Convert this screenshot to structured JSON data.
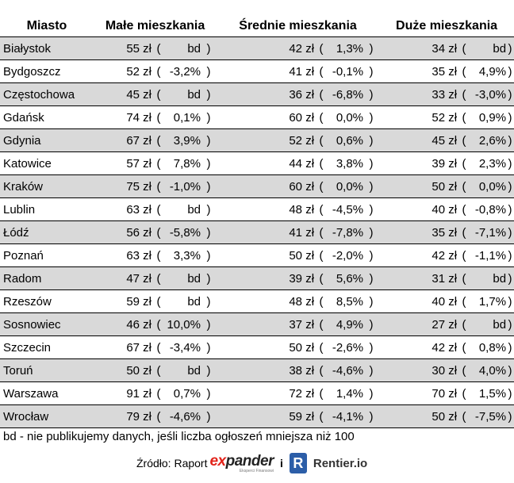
{
  "headers": [
    "Miasto",
    "Małe mieszkania",
    "Średnie mieszkania",
    "Duże mieszkania"
  ],
  "rows": [
    {
      "city": "Białystok",
      "small": {
        "price": "55 zł",
        "change": "bd"
      },
      "medium": {
        "price": "42 zł",
        "change": "1,3%"
      },
      "large": {
        "price": "34 zł",
        "change": "bd"
      }
    },
    {
      "city": "Bydgoszcz",
      "small": {
        "price": "52 zł",
        "change": "-3,2%"
      },
      "medium": {
        "price": "41 zł",
        "change": "-0,1%"
      },
      "large": {
        "price": "35 zł",
        "change": "4,9%"
      }
    },
    {
      "city": "Częstochowa",
      "small": {
        "price": "45 zł",
        "change": "bd"
      },
      "medium": {
        "price": "36 zł",
        "change": "-6,8%"
      },
      "large": {
        "price": "33 zł",
        "change": "-3,0%"
      }
    },
    {
      "city": "Gdańsk",
      "small": {
        "price": "74 zł",
        "change": "0,1%"
      },
      "medium": {
        "price": "60 zł",
        "change": "0,0%"
      },
      "large": {
        "price": "52 zł",
        "change": "0,9%"
      }
    },
    {
      "city": "Gdynia",
      "small": {
        "price": "67 zł",
        "change": "3,9%"
      },
      "medium": {
        "price": "52 zł",
        "change": "0,6%"
      },
      "large": {
        "price": "45 zł",
        "change": "2,6%"
      }
    },
    {
      "city": "Katowice",
      "small": {
        "price": "57 zł",
        "change": "7,8%"
      },
      "medium": {
        "price": "44 zł",
        "change": "3,8%"
      },
      "large": {
        "price": "39 zł",
        "change": "2,3%"
      }
    },
    {
      "city": "Kraków",
      "small": {
        "price": "75 zł",
        "change": "-1,0%"
      },
      "medium": {
        "price": "60 zł",
        "change": "0,0%"
      },
      "large": {
        "price": "50 zł",
        "change": "0,0%"
      }
    },
    {
      "city": "Lublin",
      "small": {
        "price": "63 zł",
        "change": "bd"
      },
      "medium": {
        "price": "48 zł",
        "change": "-4,5%"
      },
      "large": {
        "price": "40 zł",
        "change": "-0,8%"
      }
    },
    {
      "city": "Łódź",
      "small": {
        "price": "56 zł",
        "change": "-5,8%"
      },
      "medium": {
        "price": "41 zł",
        "change": "-7,8%"
      },
      "large": {
        "price": "35 zł",
        "change": "-7,1%"
      }
    },
    {
      "city": "Poznań",
      "small": {
        "price": "63 zł",
        "change": "3,3%"
      },
      "medium": {
        "price": "50 zł",
        "change": "-2,0%"
      },
      "large": {
        "price": "42 zł",
        "change": "-1,1%"
      }
    },
    {
      "city": "Radom",
      "small": {
        "price": "47 zł",
        "change": "bd"
      },
      "medium": {
        "price": "39 zł",
        "change": "5,6%"
      },
      "large": {
        "price": "31 zł",
        "change": "bd"
      }
    },
    {
      "city": "Rzeszów",
      "small": {
        "price": "59 zł",
        "change": "bd"
      },
      "medium": {
        "price": "48 zł",
        "change": "8,5%"
      },
      "large": {
        "price": "40 zł",
        "change": "1,7%"
      }
    },
    {
      "city": "Sosnowiec",
      "small": {
        "price": "46 zł",
        "change": "10,0%"
      },
      "medium": {
        "price": "37 zł",
        "change": "4,9%"
      },
      "large": {
        "price": "27 zł",
        "change": "bd"
      }
    },
    {
      "city": "Szczecin",
      "small": {
        "price": "67 zł",
        "change": "-3,4%"
      },
      "medium": {
        "price": "50 zł",
        "change": "-2,6%"
      },
      "large": {
        "price": "42 zł",
        "change": "0,8%"
      }
    },
    {
      "city": "Toruń",
      "small": {
        "price": "50 zł",
        "change": "bd"
      },
      "medium": {
        "price": "38 zł",
        "change": "-4,6%"
      },
      "large": {
        "price": "30 zł",
        "change": "4,0%"
      }
    },
    {
      "city": "Warszawa",
      "small": {
        "price": "91 zł",
        "change": "0,7%"
      },
      "medium": {
        "price": "72 zł",
        "change": "1,4%"
      },
      "large": {
        "price": "70 zł",
        "change": "1,5%"
      }
    },
    {
      "city": "Wrocław",
      "small": {
        "price": "79 zł",
        "change": "-4,6%"
      },
      "medium": {
        "price": "59 zł",
        "change": "-4,1%"
      },
      "large": {
        "price": "50 zł",
        "change": "-7,5%"
      }
    }
  ],
  "note": "bd - nie publikujemy danych, jeśli liczba ogłoszeń mniejsza niż 100",
  "source": {
    "prefix": "Źródło: Raport",
    "expander_logo": {
      "ex": "ex",
      "rest": "pander",
      "tagline": "Eksperci Finansowi"
    },
    "separator": "i",
    "rentier_logo_letter": "R",
    "rentier_name": "Rentier.io"
  },
  "colors": {
    "shaded_row": "#d9d9d9",
    "expander_red": "#e2231a",
    "rentier_blue": "#2c5ea8"
  }
}
